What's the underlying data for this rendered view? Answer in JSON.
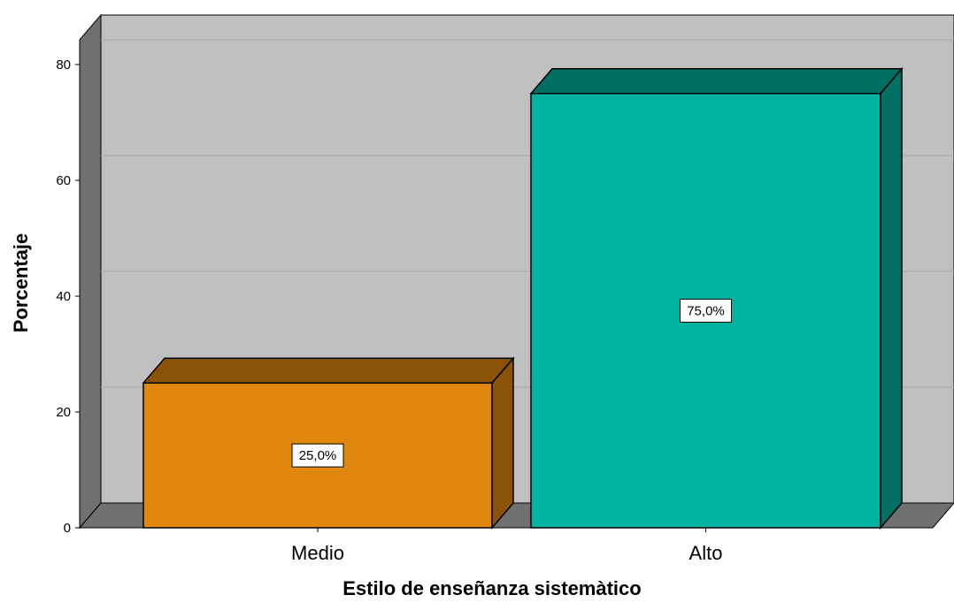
{
  "chart_data": {
    "type": "bar",
    "style": "3d",
    "categories": [
      "Medio",
      "Alto"
    ],
    "values": [
      25.0,
      75.0
    ],
    "data_labels": [
      "25,0%",
      "75,0%"
    ],
    "colors": [
      "#E0870E",
      "#00B2A0"
    ],
    "colors_top": [
      "#8A5308",
      "#006E62"
    ],
    "colors_side": [
      "#8A5308",
      "#006E62"
    ],
    "title": "",
    "xlabel": "Estilo de enseñanza sistemàtico",
    "ylabel": "Porcentaje",
    "ylim": [
      0,
      80
    ],
    "yticks": [
      0,
      20,
      40,
      60,
      80
    ],
    "grid": true,
    "legend": "none",
    "background_color": "#C0C0C0",
    "wall_color": "#707070"
  }
}
